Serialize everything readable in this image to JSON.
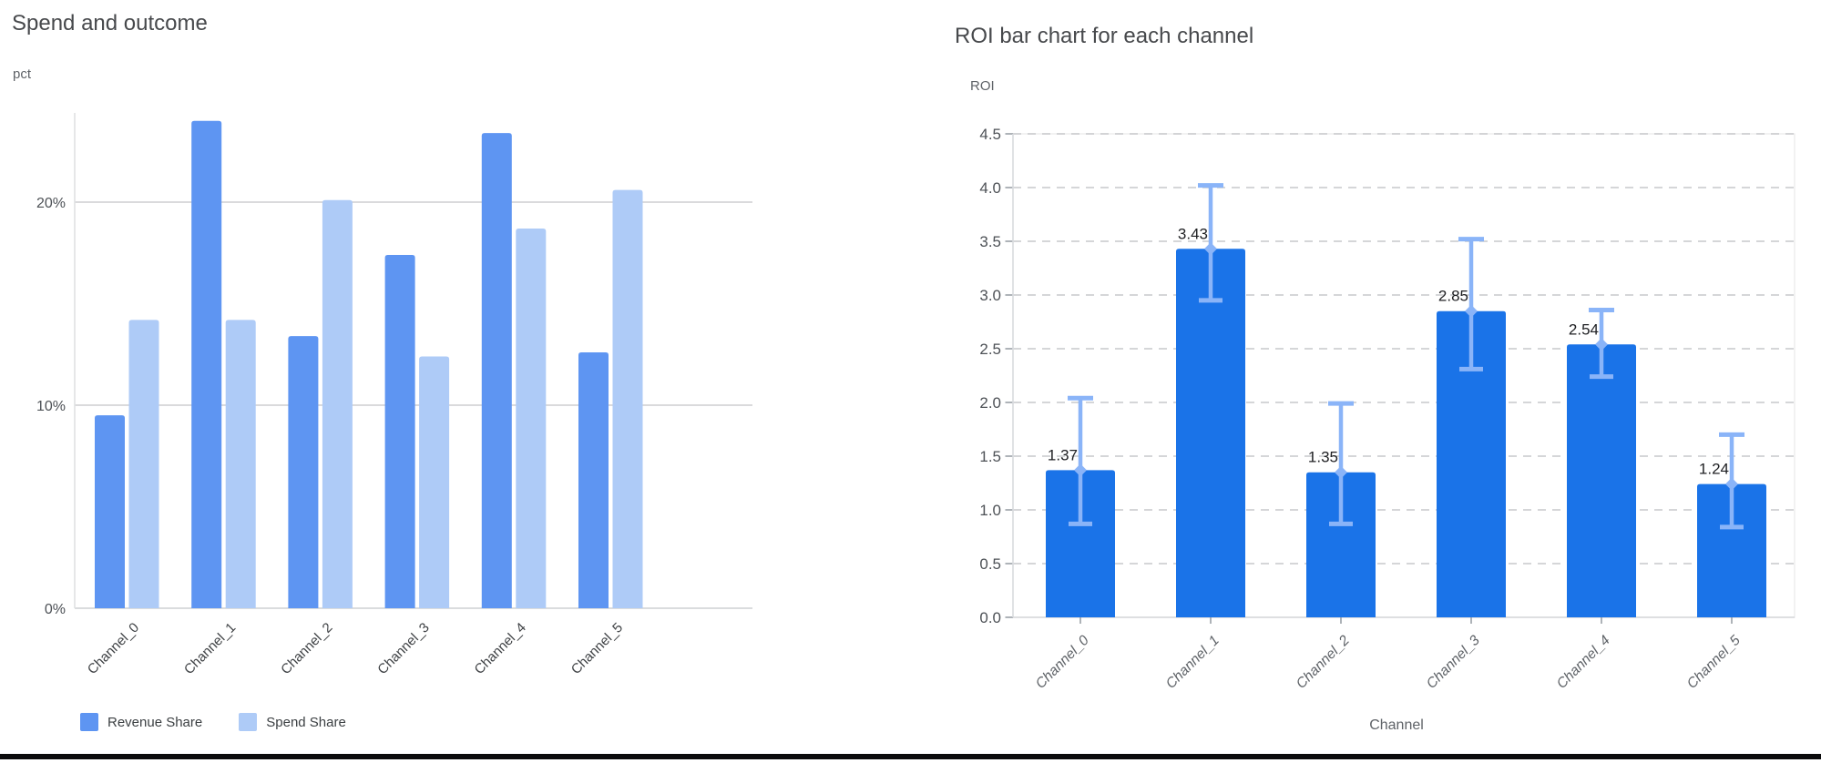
{
  "page": {
    "background": "#ffffff",
    "bottom_divider_color": "#0b0b0c"
  },
  "chart_data": [
    {
      "id": "spend-and-outcome",
      "type": "bar",
      "title": "Spend and outcome",
      "ylabel": "pct",
      "xlabel": "",
      "categories": [
        "Channel_0",
        "Channel_1",
        "Channel_2",
        "Channel_3",
        "Channel_4",
        "Channel_5"
      ],
      "series": [
        {
          "name": "Revenue Share",
          "color": "#5e95f2",
          "values": [
            9.5,
            24.0,
            13.4,
            17.4,
            23.4,
            12.6
          ]
        },
        {
          "name": "Spend Share",
          "color": "#aecbf7",
          "values": [
            14.2,
            14.2,
            20.1,
            12.4,
            18.7,
            20.6
          ]
        }
      ],
      "y_ticks": [
        "0%",
        "10%",
        "20%"
      ],
      "y_tick_values": [
        0,
        10,
        20
      ],
      "ylim": [
        0,
        24.6
      ],
      "grid": "solid",
      "legend_position": "bottom"
    },
    {
      "id": "roi-by-channel",
      "type": "bar",
      "title": "ROI bar chart for each channel",
      "ylabel": "ROI",
      "xlabel": "Channel",
      "categories": [
        "Channel_0",
        "Channel_1",
        "Channel_2",
        "Channel_3",
        "Channel_4",
        "Channel_5"
      ],
      "values": [
        1.37,
        3.43,
        1.35,
        2.85,
        2.54,
        1.24
      ],
      "data_labels": [
        "1.37",
        "3.43",
        "1.35",
        "2.85",
        "2.54",
        "1.24"
      ],
      "error_low": [
        0.87,
        2.95,
        0.87,
        2.31,
        2.24,
        0.84
      ],
      "error_high": [
        2.04,
        4.02,
        1.99,
        3.52,
        2.86,
        1.7
      ],
      "bar_color": "#1a73e8",
      "error_color": "#8ab4f8",
      "y_ticks": [
        "0.0",
        "0.5",
        "1.0",
        "1.5",
        "2.0",
        "2.5",
        "3.0",
        "3.5",
        "4.0",
        "4.5"
      ],
      "y_tick_values": [
        0,
        0.5,
        1,
        1.5,
        2,
        2.5,
        3,
        3.5,
        4,
        4.5
      ],
      "ylim": [
        0,
        4.5
      ],
      "grid": "dashed",
      "legend_position": "none"
    }
  ]
}
